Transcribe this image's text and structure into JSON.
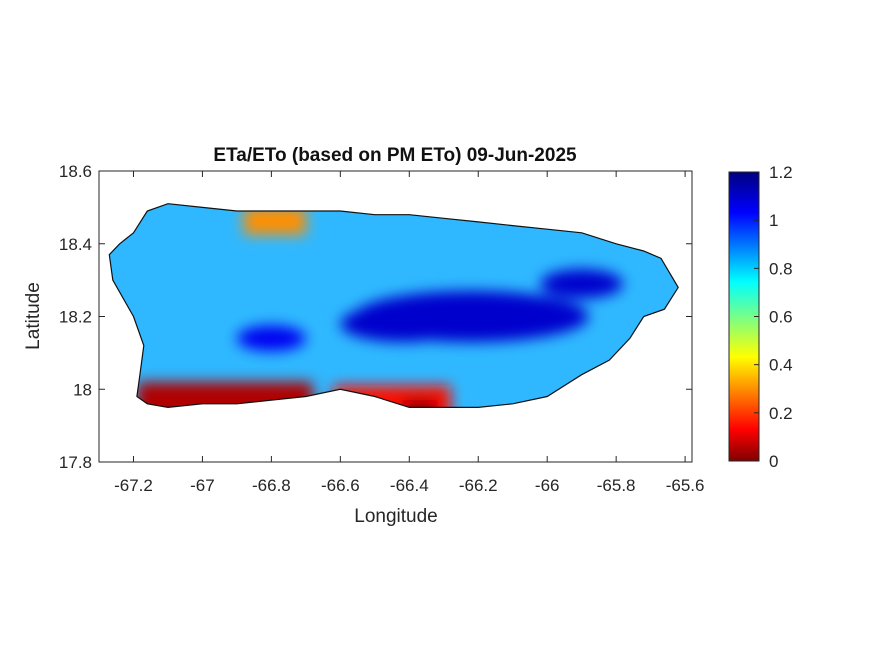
{
  "chart_data": {
    "type": "heatmap",
    "title": "ETa/ETo (based on PM ETo) 09-Jun-2025",
    "xlabel": "Longitude",
    "ylabel": "Latitude",
    "xlim": [
      -67.3,
      -65.58
    ],
    "ylim": [
      17.8,
      18.6
    ],
    "x_ticks": [
      -67.2,
      -67,
      -66.8,
      -66.6,
      -66.4,
      -66.2,
      -66,
      -65.8,
      -65.6
    ],
    "x_tick_labels": [
      "-67.2",
      "-67",
      "-66.8",
      "-66.6",
      "-66.4",
      "-66.2",
      "-66",
      "-65.8",
      "-65.6"
    ],
    "y_ticks": [
      17.8,
      18,
      18.2,
      18.4,
      18.6
    ],
    "y_tick_labels": [
      "17.8",
      "18",
      "18.2",
      "18.4",
      "18.6"
    ],
    "colorbar": {
      "colormap": "jet",
      "range": [
        0,
        1.2
      ],
      "ticks": [
        0,
        0.2,
        0.4,
        0.6,
        0.8,
        1,
        1.2
      ],
      "tick_labels": [
        "0",
        "0.2",
        "0.4",
        "0.6",
        "0.8",
        "1",
        "1.2"
      ]
    },
    "grid": false,
    "island_outline": [
      [
        -67.27,
        18.37
      ],
      [
        -67.24,
        18.4
      ],
      [
        -67.2,
        18.43
      ],
      [
        -67.16,
        18.49
      ],
      [
        -67.1,
        18.51
      ],
      [
        -67.0,
        18.5
      ],
      [
        -66.9,
        18.49
      ],
      [
        -66.8,
        18.49
      ],
      [
        -66.7,
        18.49
      ],
      [
        -66.6,
        18.49
      ],
      [
        -66.5,
        18.48
      ],
      [
        -66.4,
        18.48
      ],
      [
        -66.3,
        18.47
      ],
      [
        -66.2,
        18.46
      ],
      [
        -66.1,
        18.45
      ],
      [
        -66.0,
        18.44
      ],
      [
        -65.9,
        18.43
      ],
      [
        -65.8,
        18.4
      ],
      [
        -65.72,
        18.38
      ],
      [
        -65.67,
        18.36
      ],
      [
        -65.62,
        18.28
      ],
      [
        -65.66,
        18.22
      ],
      [
        -65.72,
        18.2
      ],
      [
        -65.76,
        18.14
      ],
      [
        -65.82,
        18.08
      ],
      [
        -65.9,
        18.04
      ],
      [
        -66.0,
        17.98
      ],
      [
        -66.1,
        17.96
      ],
      [
        -66.2,
        17.95
      ],
      [
        -66.3,
        17.95
      ],
      [
        -66.4,
        17.95
      ],
      [
        -66.5,
        17.98
      ],
      [
        -66.6,
        18.0
      ],
      [
        -66.7,
        17.98
      ],
      [
        -66.8,
        17.97
      ],
      [
        -66.9,
        17.96
      ],
      [
        -67.0,
        17.96
      ],
      [
        -67.1,
        17.95
      ],
      [
        -67.16,
        17.96
      ],
      [
        -67.19,
        17.98
      ],
      [
        -67.18,
        18.05
      ],
      [
        -67.17,
        18.12
      ],
      [
        -67.2,
        18.2
      ],
      [
        -67.26,
        18.3
      ]
    ],
    "zones": [
      {
        "shape": "ellipse",
        "center": [
          -66.22,
          18.2
        ],
        "radius": [
          0.34,
          0.07
        ],
        "value": 1.1
      },
      {
        "shape": "ellipse",
        "center": [
          -65.9,
          18.29
        ],
        "radius": [
          0.12,
          0.04
        ],
        "value": 1.1
      },
      {
        "shape": "ellipse",
        "center": [
          -66.8,
          18.14
        ],
        "radius": [
          0.1,
          0.035
        ],
        "value": 1.05
      },
      {
        "shape": "ellipse",
        "center": [
          -66.42,
          18.18
        ],
        "radius": [
          0.18,
          0.05
        ],
        "value": 1.1
      },
      {
        "shape": "band",
        "lon": [
          -67.19,
          -66.68
        ],
        "lat": [
          17.95,
          18.02
        ],
        "value": 0.05
      },
      {
        "shape": "band",
        "lon": [
          -66.62,
          -66.28
        ],
        "lat": [
          17.95,
          18.01
        ],
        "value": 0.15
      },
      {
        "shape": "band",
        "lon": [
          -66.42,
          -66.32
        ],
        "lat": [
          17.94,
          17.97
        ],
        "value": 0.0
      },
      {
        "shape": "band",
        "lon": [
          -66.88,
          -66.7
        ],
        "lat": [
          18.48,
          18.5
        ],
        "value": 0.3
      }
    ]
  }
}
